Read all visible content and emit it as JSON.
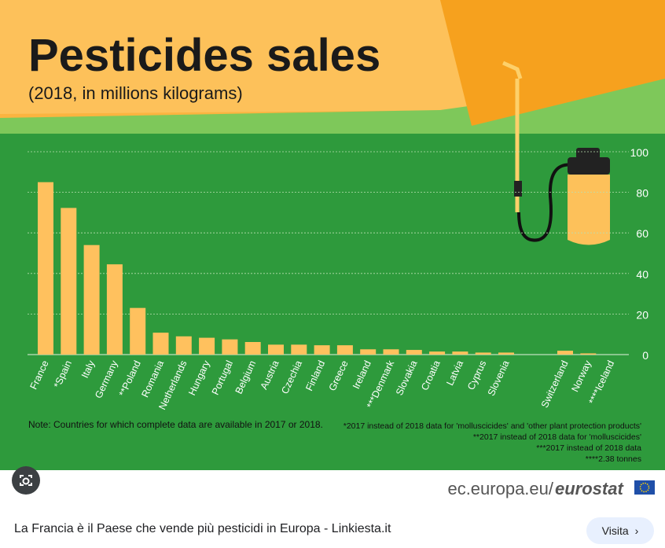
{
  "chart_data": {
    "type": "bar",
    "title": "Pesticides sales",
    "subtitle": "(2018, in millions kilograms)",
    "ylim": [
      0,
      100
    ],
    "yticks": [
      "0",
      "20",
      "40",
      "60",
      "80",
      "100"
    ],
    "categories": [
      "France",
      "*Spain",
      "Italy",
      "Germany",
      "**Poland",
      "Romania",
      "Netherlands",
      "Hungary",
      "Portugal",
      "Belgium",
      "Austria",
      "Czechia",
      "Finland",
      "Greece",
      "Ireland",
      "***Denmark",
      "Slovakia",
      "Croatia",
      "Latvia",
      "Cyprus",
      "Slovenia",
      "Switzerland",
      "Norway",
      "****Iceland"
    ],
    "values": [
      85.0,
      72.3,
      54.0,
      44.5,
      23.0,
      10.8,
      9.0,
      8.3,
      7.5,
      6.2,
      4.9,
      4.9,
      4.6,
      4.6,
      2.6,
      2.6,
      2.3,
      1.5,
      1.5,
      1.0,
      1.0,
      1.9,
      0.6,
      0.0024
    ],
    "bar_color": "#ffc15e",
    "note": "Note: Countries for which complete data are available in 2017 or 2018.",
    "footnotes": [
      "*2017 instead of 2018 data for 'molluscicides' and 'other plant protection products'",
      "**2017 instead of 2018 data for 'molluscicides'",
      "***2017 instead of 2018 data",
      "****2.38 tonnes"
    ],
    "source": "ec.europa.eu/",
    "brand": "eurostat"
  },
  "colors": {
    "background_green": "#2e9a3c",
    "header_orange": "#fbb440",
    "header_light": "#fdc15a",
    "accent_green": "#6cbf4a",
    "text_dark": "#1a1a1a"
  },
  "caption": "La Francia è il Paese che vende più pesticidi in Europa - Linkiesta.it",
  "visit_label": "Visita",
  "lens_icon": "lens-icon"
}
